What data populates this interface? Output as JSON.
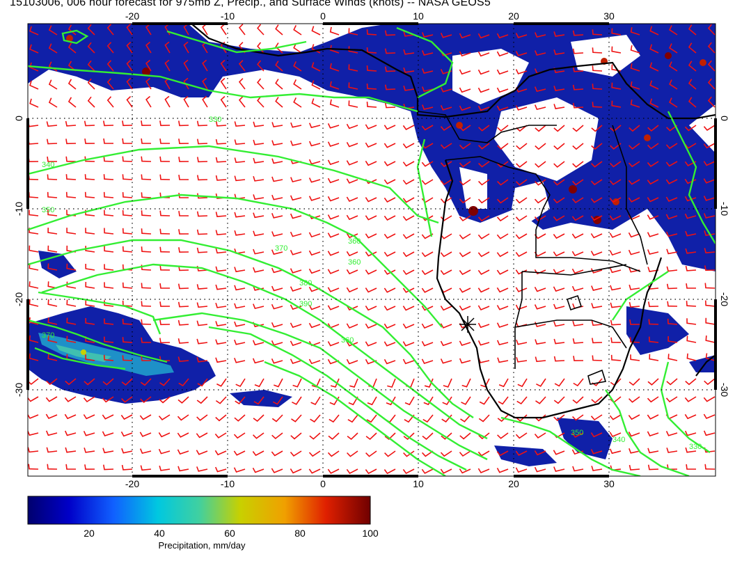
{
  "title": "15103006, 006 hour forecast for 975mb Z, Precip., and Surface Winds (knots) -- NASA GEOS5",
  "map": {
    "lon_range": [
      -30,
      42
    ],
    "lat_range": [
      -40,
      10
    ],
    "lon_ticks": [
      "-20",
      "-10",
      "0",
      "10",
      "20",
      "30"
    ],
    "lat_ticks": [
      "0",
      "-10",
      "-20",
      "-30"
    ],
    "contour_labels": [
      "330",
      "340",
      "350",
      "360",
      "370",
      "380",
      "390",
      "360",
      "350",
      "340",
      "330",
      "360",
      "370"
    ],
    "colors": {
      "contour": "#33ee33",
      "wind_barb": "#ee1111",
      "coast": "#000000",
      "precip_low": "#000080",
      "precip_high": "#800000"
    }
  },
  "colorbar": {
    "ticks": [
      "20",
      "40",
      "60",
      "80",
      "100"
    ],
    "label": "Precipitation, mm/day",
    "range": [
      0,
      100
    ]
  }
}
